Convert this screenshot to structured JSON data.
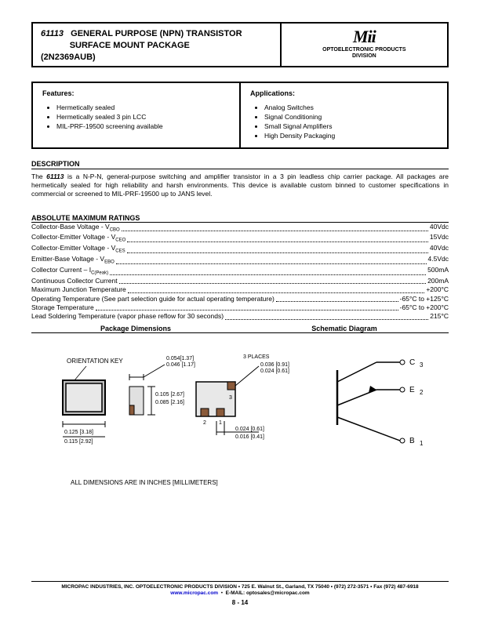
{
  "header": {
    "part_number": "61113",
    "title_line1": "GENERAL PURPOSE (NPN) TRANSISTOR",
    "title_line2": "SURFACE MOUNT PACKAGE",
    "alt_part": "(2N2369AUB)",
    "logo": "Mii",
    "logo_sub1": "OPTOELECTRONIC PRODUCTS",
    "logo_sub2": "DIVISION"
  },
  "features": {
    "title": "Features:",
    "items": [
      "Hermetically sealed",
      "Hermetically sealed 3 pin LCC",
      "MIL-PRF-19500 screening available"
    ]
  },
  "applications": {
    "title": "Applications:",
    "items": [
      "Analog Switches",
      "Signal Conditioning",
      "Small Signal Amplifiers",
      "High Density Packaging"
    ]
  },
  "description": {
    "title": "DESCRIPTION",
    "text_pre": "The ",
    "pn": "61113",
    "text_post": " is a N-P-N, general-purpose switching and amplifier transistor in a 3 pin leadless chip carrier package.  All packages are hermetically sealed for high reliability and harsh environments.  This device is available custom binned to customer specifications in commercial or screened to MIL-PRF-19500 up to JANS level."
  },
  "ratings": {
    "title": "ABSOLUTE MAXIMUM RATINGS",
    "rows": [
      {
        "label": "Collector-Base Voltage - V",
        "sub": "CBO",
        "value": "40Vdc"
      },
      {
        "label": "Collector-Emitter Voltage - V",
        "sub": "CEO",
        "value": "15Vdc"
      },
      {
        "label": "Collector-Emitter Voltage - V",
        "sub": "CES",
        "value": "40Vdc"
      },
      {
        "label": "Emitter-Base Voltage - V",
        "sub": "EBO",
        "value": "4.5Vdc"
      },
      {
        "label": "Collector Current – I",
        "sub": "C(Peak)",
        "value": "500mA"
      },
      {
        "label": "Continuous Collector Current ",
        "sub": "",
        "value": "200mA"
      },
      {
        "label": "Maximum Junction Temperature",
        "sub": "",
        "value": "+200°C"
      },
      {
        "label": "Operating Temperature (See part selection guide for actual operating temperature)",
        "sub": "",
        "value": "-65°C to +125°C"
      },
      {
        "label": "Storage Temperature",
        "sub": "",
        "value": "-65°C to +200°C"
      },
      {
        "label": "Lead Soldering Temperature (vapor phase reflow for 30 seconds) ",
        "sub": "",
        "value": "215°C"
      }
    ]
  },
  "diagrams": {
    "pkg_title": "Package Dimensions",
    "schem_title": "Schematic Diagram",
    "orientation_key": "ORIENTATION KEY",
    "dims_note": "ALL DIMENSIONS ARE IN INCHES [MILLIMETERS]",
    "three_places": "3 PLACES",
    "dim_a1": "0.054[1.37]",
    "dim_a2": "0.046 [1.17]",
    "dim_b1": "0.105 [2.67]",
    "dim_b2": "0.085 [2.16]",
    "dim_c1": "0.125 [3.18]",
    "dim_c2": "0.115 [2.92]",
    "dim_d1": "0.036 [0.91]",
    "dim_d2": "0.024 [0.61]",
    "dim_e1": "0.024 [0.61]",
    "dim_e2": "0.016 [0.41]",
    "pin1": "1",
    "pin2": "2",
    "pin3": "3",
    "sch_c": "C",
    "sch_e": "E",
    "sch_b": "B",
    "sch_n1": "1",
    "sch_n2": "2",
    "sch_n3": "3"
  },
  "footer": {
    "line1": "MICROPAC INDUSTRIES, INC. OPTOELECTRONIC PRODUCTS DIVISION • 725 E. Walnut St., Garland, TX  75040 • (972) 272-3571 • Fax (972) 487-6918",
    "site": "www.micropac.com",
    "email_label": "E-MAIL:  optosales@micropac.com",
    "page": "8 - 14"
  }
}
